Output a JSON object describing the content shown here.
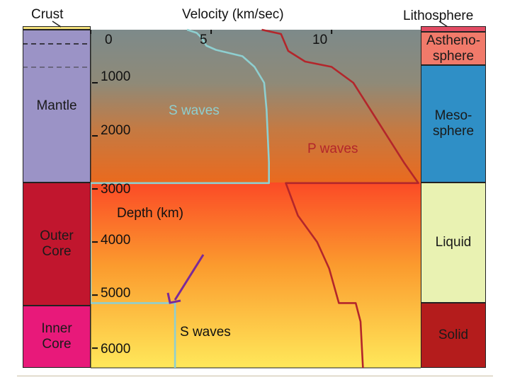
{
  "header": {
    "crust": "Crust",
    "velocity_axis": "Velocity (km/sec)",
    "lithosphere": "Lithosphere"
  },
  "left_column": {
    "mantle": "Mantle",
    "outer_core_line1": "Outer",
    "outer_core_line2": "Core",
    "inner_core_line1": "Inner",
    "inner_core_line2": "Core"
  },
  "right_column": {
    "astheno_line1": "Astheno-",
    "astheno_line2": "sphere",
    "meso_line1": "Meso-",
    "meso_line2": "sphere",
    "liquid": "Liquid",
    "solid": "Solid"
  },
  "labels": {
    "s_waves_upper": "S waves",
    "p_waves": "P waves",
    "depth_axis": "Depth (km)",
    "s_waves_lower": "S waves"
  },
  "colors": {
    "mantle": "#9b93c6",
    "outer_core": "#c1162e",
    "inner_core": "#e8197a",
    "asthenosphere": "#f17a6a",
    "mesosphere": "#2f8fc6",
    "liquid": "#e9f2b2",
    "solid": "#b41c1c",
    "s_wave": "#8ecfd0",
    "p_wave": "#b3262b",
    "arrow": "#7b2a98",
    "crust": "#f3e07a",
    "lithosphere": "#e34b63"
  },
  "chart_data": {
    "type": "line",
    "xlabel": "Velocity (km/sec)",
    "ylabel": "Depth (km)",
    "x_ticks": [
      "0",
      "5",
      "10"
    ],
    "y_ticks": [
      "1000",
      "2000",
      "3000",
      "4000",
      "5000",
      "6000"
    ],
    "xlim": [
      0,
      13.7
    ],
    "ylim": [
      0,
      6371
    ],
    "series": [
      {
        "name": "S waves",
        "points": [
          [
            4.0,
            0
          ],
          [
            4.4,
            60
          ],
          [
            4.6,
            150
          ],
          [
            4.8,
            300
          ],
          [
            5.2,
            380
          ],
          [
            6.3,
            500
          ],
          [
            6.8,
            700
          ],
          [
            7.2,
            1000
          ],
          [
            7.3,
            1500
          ],
          [
            7.35,
            2000
          ],
          [
            7.4,
            2500
          ],
          [
            7.4,
            2890
          ],
          [
            0,
            2890
          ],
          [
            0,
            5150
          ],
          [
            3.5,
            5150
          ],
          [
            3.5,
            6371
          ]
        ]
      },
      {
        "name": "P waves",
        "points": [
          [
            7.1,
            0
          ],
          [
            7.9,
            80
          ],
          [
            8.2,
            400
          ],
          [
            8.9,
            600
          ],
          [
            10.0,
            700
          ],
          [
            10.9,
            1000
          ],
          [
            11.6,
            1500
          ],
          [
            12.3,
            2000
          ],
          [
            13.0,
            2500
          ],
          [
            13.6,
            2890
          ],
          [
            8.1,
            2890
          ],
          [
            8.6,
            3500
          ],
          [
            9.4,
            4000
          ],
          [
            9.9,
            4500
          ],
          [
            10.3,
            5150
          ],
          [
            11.0,
            5150
          ],
          [
            11.2,
            5500
          ],
          [
            11.3,
            6371
          ]
        ]
      }
    ]
  }
}
